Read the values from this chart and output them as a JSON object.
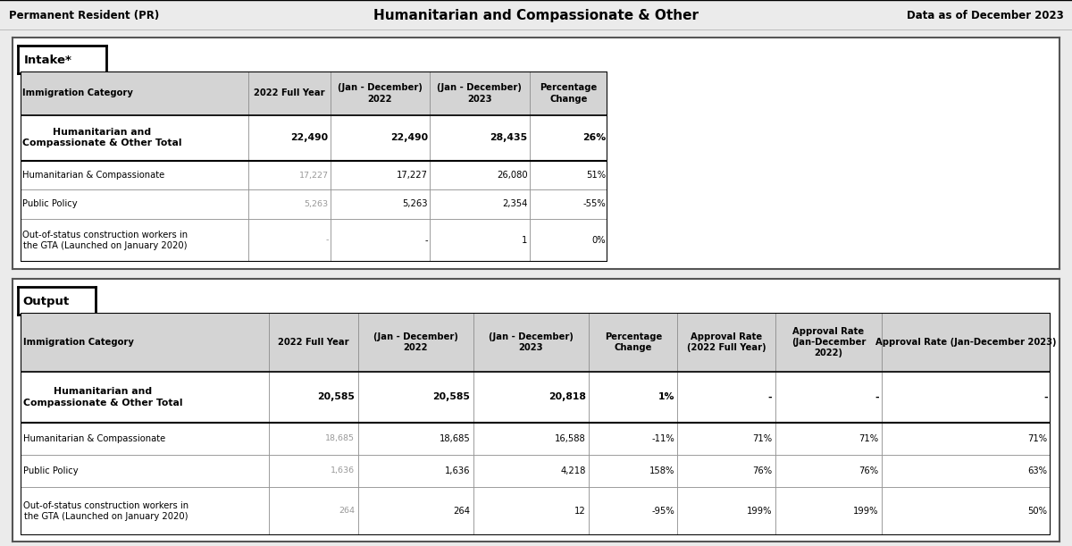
{
  "header_left": "Permanent Resident (PR)",
  "header_center": "Humanitarian and Compassionate & Other",
  "header_right": "Data as of December 2023",
  "header_bg": "#bebebe",
  "intake_title": "Intake*",
  "intake_col_headers": [
    "Immigration Category",
    "2022 Full Year",
    "(Jan - December)\n2022",
    "(Jan - December)\n2023",
    "Percentage\nChange"
  ],
  "intake_bold_row": [
    "Humanitarian and\nCompassionate & Other Total",
    "22,490",
    "22,490",
    "28,435",
    "26%"
  ],
  "intake_rows": [
    [
      "Humanitarian & Compassionate",
      "17,227",
      "17,227",
      "26,080",
      "51%"
    ],
    [
      "Public Policy",
      "5,263",
      "5,263",
      "2,354",
      "-55%"
    ],
    [
      "Out-of-status construction workers in\nthe GTA (Launched on January 2020)",
      "-",
      "-",
      "1",
      "0%"
    ]
  ],
  "output_title": "Output",
  "output_col_headers": [
    "Immigration Category",
    "2022 Full Year",
    "(Jan - December)\n2022",
    "(Jan - December)\n2023",
    "Percentage\nChange",
    "Approval Rate\n(2022 Full Year)",
    "Approval Rate\n(Jan-December\n2022)",
    "Approval Rate (Jan-December 2023)"
  ],
  "output_bold_row": [
    "Humanitarian and\nCompassionate & Other Total",
    "20,585",
    "20,585",
    "20,818",
    "1%",
    "-",
    "-",
    "-"
  ],
  "output_rows": [
    [
      "Humanitarian & Compassionate",
      "18,685",
      "18,685",
      "16,588",
      "-11%",
      "71%",
      "71%",
      "71%"
    ],
    [
      "Public Policy",
      "1,636",
      "1,636",
      "4,218",
      "158%",
      "76%",
      "76%",
      "63%"
    ],
    [
      "Out-of-status construction workers in\nthe GTA (Launched on January 2020)",
      "264",
      "264",
      "12",
      "-95%",
      "199%",
      "199%",
      "50%"
    ]
  ],
  "fig_bg": "#ebebeb",
  "section_bg": "#ffffff",
  "header_row_bg": "#d4d4d4",
  "normal_row_bg": "#ffffff",
  "bold_row_bg": "#ffffff"
}
